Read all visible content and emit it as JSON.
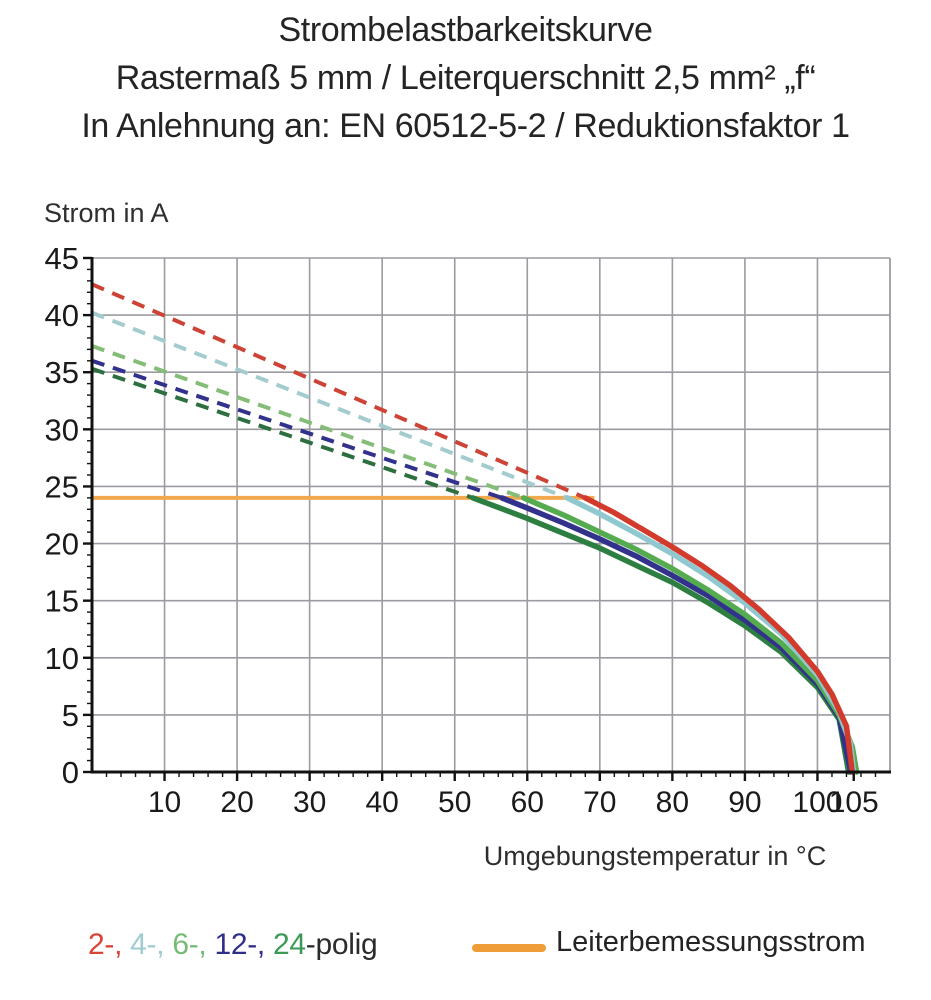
{
  "title": {
    "lines": [
      "Strombelastbarkeitskurve",
      "Rastermaß 5 mm / Leiterquerschnitt 2,5 mm² „f“",
      "In Anlehnung an: EN 60512-5-2 / Reduktionsfaktor 1"
    ]
  },
  "axes": {
    "y_title": "Strom in A",
    "x_title": "Umgebungstemperatur in °C"
  },
  "legend": {
    "series_segments": [
      {
        "text": "2-,",
        "color": "#d84435"
      },
      {
        "text": " 4-,",
        "color": "#9fccd1"
      },
      {
        "text": " 6-,",
        "color": "#74bc74"
      },
      {
        "text": " 12-,",
        "color": "#2f2f86"
      },
      {
        "text": " 24",
        "color": "#3a9a55"
      },
      {
        "text": "-polig",
        "color": "#2b2b2b"
      }
    ],
    "rated": {
      "label": "Leiterbemessungsstrom",
      "swatch_color": "#ee9d38"
    }
  },
  "chart_data": {
    "type": "line",
    "title": "Strombelastbarkeitskurve",
    "subtitle": "Rastermaß 5 mm / Leiterquerschnitt 2,5 mm² „f“",
    "subtitle2": "In Anlehnung an: EN 60512-5-2 / Reduktionsfaktor 1",
    "xlabel": "Umgebungstemperatur in °C",
    "ylabel": "Strom in A",
    "xlim": [
      0,
      110
    ],
    "ylim": [
      0,
      45
    ],
    "x_major_ticks": [
      10,
      20,
      30,
      40,
      50,
      60,
      70,
      80,
      90,
      100,
      105
    ],
    "x_grid_step": 10,
    "x_minor_step": 2,
    "y_major_step": 5,
    "y_minor_step": 1,
    "grid": true,
    "grid_color": "#9b9ba1",
    "axis_color": "#111111",
    "rated_current": {
      "label": "Leiterbemessungsstrom",
      "value": 24,
      "x_start": 0,
      "x_end": 69,
      "color": "#f2a94e"
    },
    "series": [
      {
        "name": "24-polig",
        "color": "#2d7f41",
        "dash_color": "#2d6f3e",
        "dashed": [
          [
            0,
            35.3
          ],
          [
            52.5,
            24
          ]
        ],
        "solid": [
          [
            52.5,
            24
          ],
          [
            55,
            23.4
          ],
          [
            60,
            22.2
          ],
          [
            65,
            20.9
          ],
          [
            70,
            19.6
          ],
          [
            75,
            18.1
          ],
          [
            80,
            16.6
          ],
          [
            85,
            14.8
          ],
          [
            90,
            12.8
          ],
          [
            95,
            10.5
          ],
          [
            100,
            7.4
          ],
          [
            103,
            4.6
          ],
          [
            104.3,
            0
          ]
        ]
      },
      {
        "name": "12-polig",
        "color": "#32318c",
        "dash_color": "#32318c",
        "dashed": [
          [
            0,
            36.0
          ],
          [
            56.5,
            24
          ]
        ],
        "solid": [
          [
            56.5,
            24
          ],
          [
            60,
            23.1
          ],
          [
            65,
            21.8
          ],
          [
            70,
            20.4
          ],
          [
            75,
            18.9
          ],
          [
            80,
            17.2
          ],
          [
            85,
            15.4
          ],
          [
            90,
            13.3
          ],
          [
            95,
            10.9
          ],
          [
            100,
            7.7
          ],
          [
            103,
            4.8
          ],
          [
            104.6,
            0
          ]
        ]
      },
      {
        "name": "6-polig",
        "color": "#54ab50",
        "dash_color": "#84bd77",
        "dashed": [
          [
            0,
            37.3
          ],
          [
            59.5,
            24
          ]
        ],
        "solid": [
          [
            59.5,
            24
          ],
          [
            65,
            22.5
          ],
          [
            70,
            21.0
          ],
          [
            75,
            19.5
          ],
          [
            80,
            17.8
          ],
          [
            85,
            15.9
          ],
          [
            90,
            13.8
          ],
          [
            95,
            11.3
          ],
          [
            100,
            8.0
          ],
          [
            103,
            5.0
          ],
          [
            104.8,
            2.2
          ],
          [
            105.4,
            0
          ]
        ]
      },
      {
        "name": "4-polig",
        "color": "#8fc9cf",
        "dash_color": "#a3ccce",
        "dashed": [
          [
            0,
            40.2
          ],
          [
            65.5,
            24
          ]
        ],
        "solid": [
          [
            65.5,
            24
          ],
          [
            70,
            22.6
          ],
          [
            75,
            20.9
          ],
          [
            80,
            19.1
          ],
          [
            85,
            17.1
          ],
          [
            90,
            14.8
          ],
          [
            95,
            12.1
          ],
          [
            100,
            8.5
          ],
          [
            103,
            5.3
          ],
          [
            104.5,
            2.5
          ],
          [
            105,
            0
          ]
        ]
      },
      {
        "name": "2-polig",
        "color": "#d23a2c",
        "dash_color": "#cd4335",
        "dashed": [
          [
            0,
            42.7
          ],
          [
            68,
            24
          ]
        ],
        "solid": [
          [
            68,
            24
          ],
          [
            72,
            22.7
          ],
          [
            76,
            21.2
          ],
          [
            80,
            19.7
          ],
          [
            84,
            18.1
          ],
          [
            88,
            16.3
          ],
          [
            92,
            14.2
          ],
          [
            96,
            11.8
          ],
          [
            100,
            8.8
          ],
          [
            102,
            6.8
          ],
          [
            104,
            4.0
          ],
          [
            104.8,
            0
          ]
        ]
      }
    ]
  }
}
